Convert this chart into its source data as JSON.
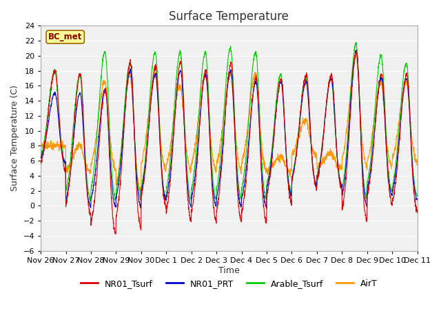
{
  "title": "Surface Temperature",
  "ylabel": "Surface Temperature (C)",
  "xlabel": "Time",
  "ylim": [
    -6,
    24
  ],
  "yticks": [
    -6,
    -4,
    -2,
    0,
    2,
    4,
    6,
    8,
    10,
    12,
    14,
    16,
    18,
    20,
    22,
    24
  ],
  "xtick_labels": [
    "Nov 26",
    "Nov 27",
    "Nov 28",
    "Nov 29",
    "Nov 30",
    "Dec 1",
    "Dec 2",
    "Dec 3",
    "Dec 4",
    "Dec 5",
    "Dec 6",
    "Dec 7",
    "Dec 8",
    "Dec 9",
    "Dec 10",
    "Dec 11"
  ],
  "station_label": "BC_met",
  "legend_labels": [
    "NR01_Tsurf",
    "NR01_PRT",
    "Arable_Tsurf",
    "AirT"
  ],
  "line_colors": [
    "#dd0000",
    "#0000cc",
    "#00cc00",
    "#ff9900"
  ],
  "bg_color": "#ffffff",
  "plot_bg_color": "#f0f0f0",
  "grid_color": "#ffffff",
  "title_fontsize": 12,
  "axis_label_fontsize": 9,
  "tick_fontsize": 8,
  "legend_fontsize": 9,
  "n_days": 15,
  "ppd": 144,
  "day_peaks_nr01": [
    18.0,
    17.5,
    15.5,
    19.2,
    18.5,
    19.2,
    18.0,
    19.0,
    17.0,
    17.0,
    17.5,
    17.5,
    20.5,
    17.5,
    17.5
  ],
  "day_peaks_prt": [
    15.0,
    15.0,
    15.5,
    18.0,
    17.5,
    18.0,
    17.5,
    18.0,
    16.5,
    16.5,
    16.5,
    17.0,
    20.5,
    17.0,
    17.0
  ],
  "day_peaks_arable": [
    18.0,
    17.5,
    20.5,
    19.0,
    20.5,
    20.5,
    20.5,
    21.0,
    20.5,
    17.5,
    17.0,
    17.0,
    21.5,
    20.0,
    19.0
  ],
  "day_peaks_air": [
    8.0,
    8.0,
    16.5,
    17.5,
    17.5,
    16.0,
    17.5,
    17.5,
    17.5,
    6.5,
    11.5,
    7.0,
    20.0,
    16.5,
    16.5
  ],
  "night_mins_nr01": [
    4.5,
    -1.5,
    -4.0,
    -3.5,
    -0.5,
    -2.5,
    -2.5,
    -2.5,
    -2.5,
    0.0,
    2.0,
    2.0,
    -2.5,
    0.0,
    -1.0
  ],
  "night_mins_prt": [
    5.5,
    -0.5,
    -0.5,
    -0.5,
    0.5,
    -0.5,
    -0.5,
    -0.5,
    -0.5,
    1.0,
    2.5,
    2.5,
    -0.5,
    1.0,
    0.5
  ],
  "night_mins_arable": [
    5.5,
    0.5,
    0.5,
    0.5,
    0.5,
    0.5,
    0.5,
    0.5,
    0.5,
    1.5,
    2.5,
    2.5,
    0.5,
    1.5,
    1.0
  ],
  "night_mins_air": [
    8.0,
    4.5,
    4.5,
    1.5,
    4.5,
    4.5,
    4.5,
    4.5,
    4.5,
    4.5,
    6.5,
    5.0,
    5.0,
    5.0,
    5.5
  ]
}
